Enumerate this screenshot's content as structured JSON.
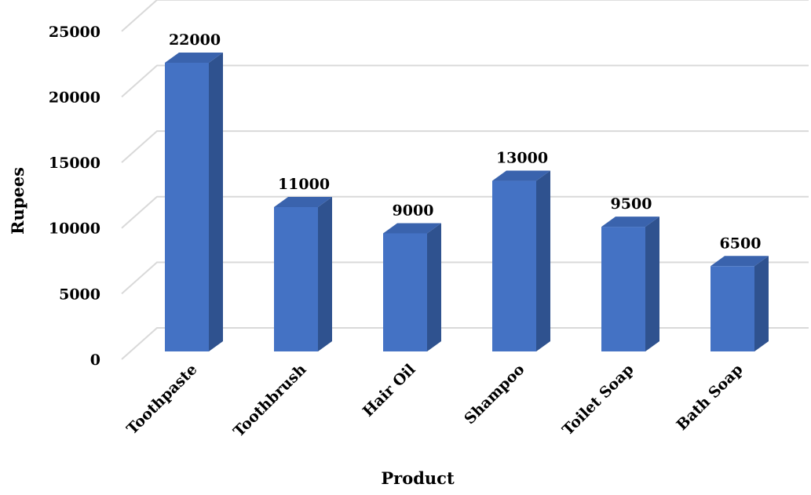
{
  "chart_data": {
    "type": "bar",
    "style": "3d-column",
    "categories": [
      "Toothpaste",
      "Toothbrush",
      "Hair Oil",
      "Shampoo",
      "Toilet Soap",
      "Bath Soap"
    ],
    "values": [
      22000,
      11000,
      9000,
      13000,
      9500,
      6500
    ],
    "data_labels": [
      "22000",
      "11000",
      "9000",
      "13000",
      "9500",
      "6500"
    ],
    "title": "",
    "xlabel": "Product",
    "ylabel": "Rupees",
    "ylim": [
      0,
      25000
    ],
    "yticks": [
      "0",
      "5000",
      "10000",
      "15000",
      "20000",
      "25000"
    ],
    "grid": true,
    "legend": "none",
    "colors": {
      "bar_front": "#4472C4",
      "bar_side": "#2F528F",
      "bar_top": "#3A63AD",
      "grid": "#D9D9D9"
    }
  }
}
